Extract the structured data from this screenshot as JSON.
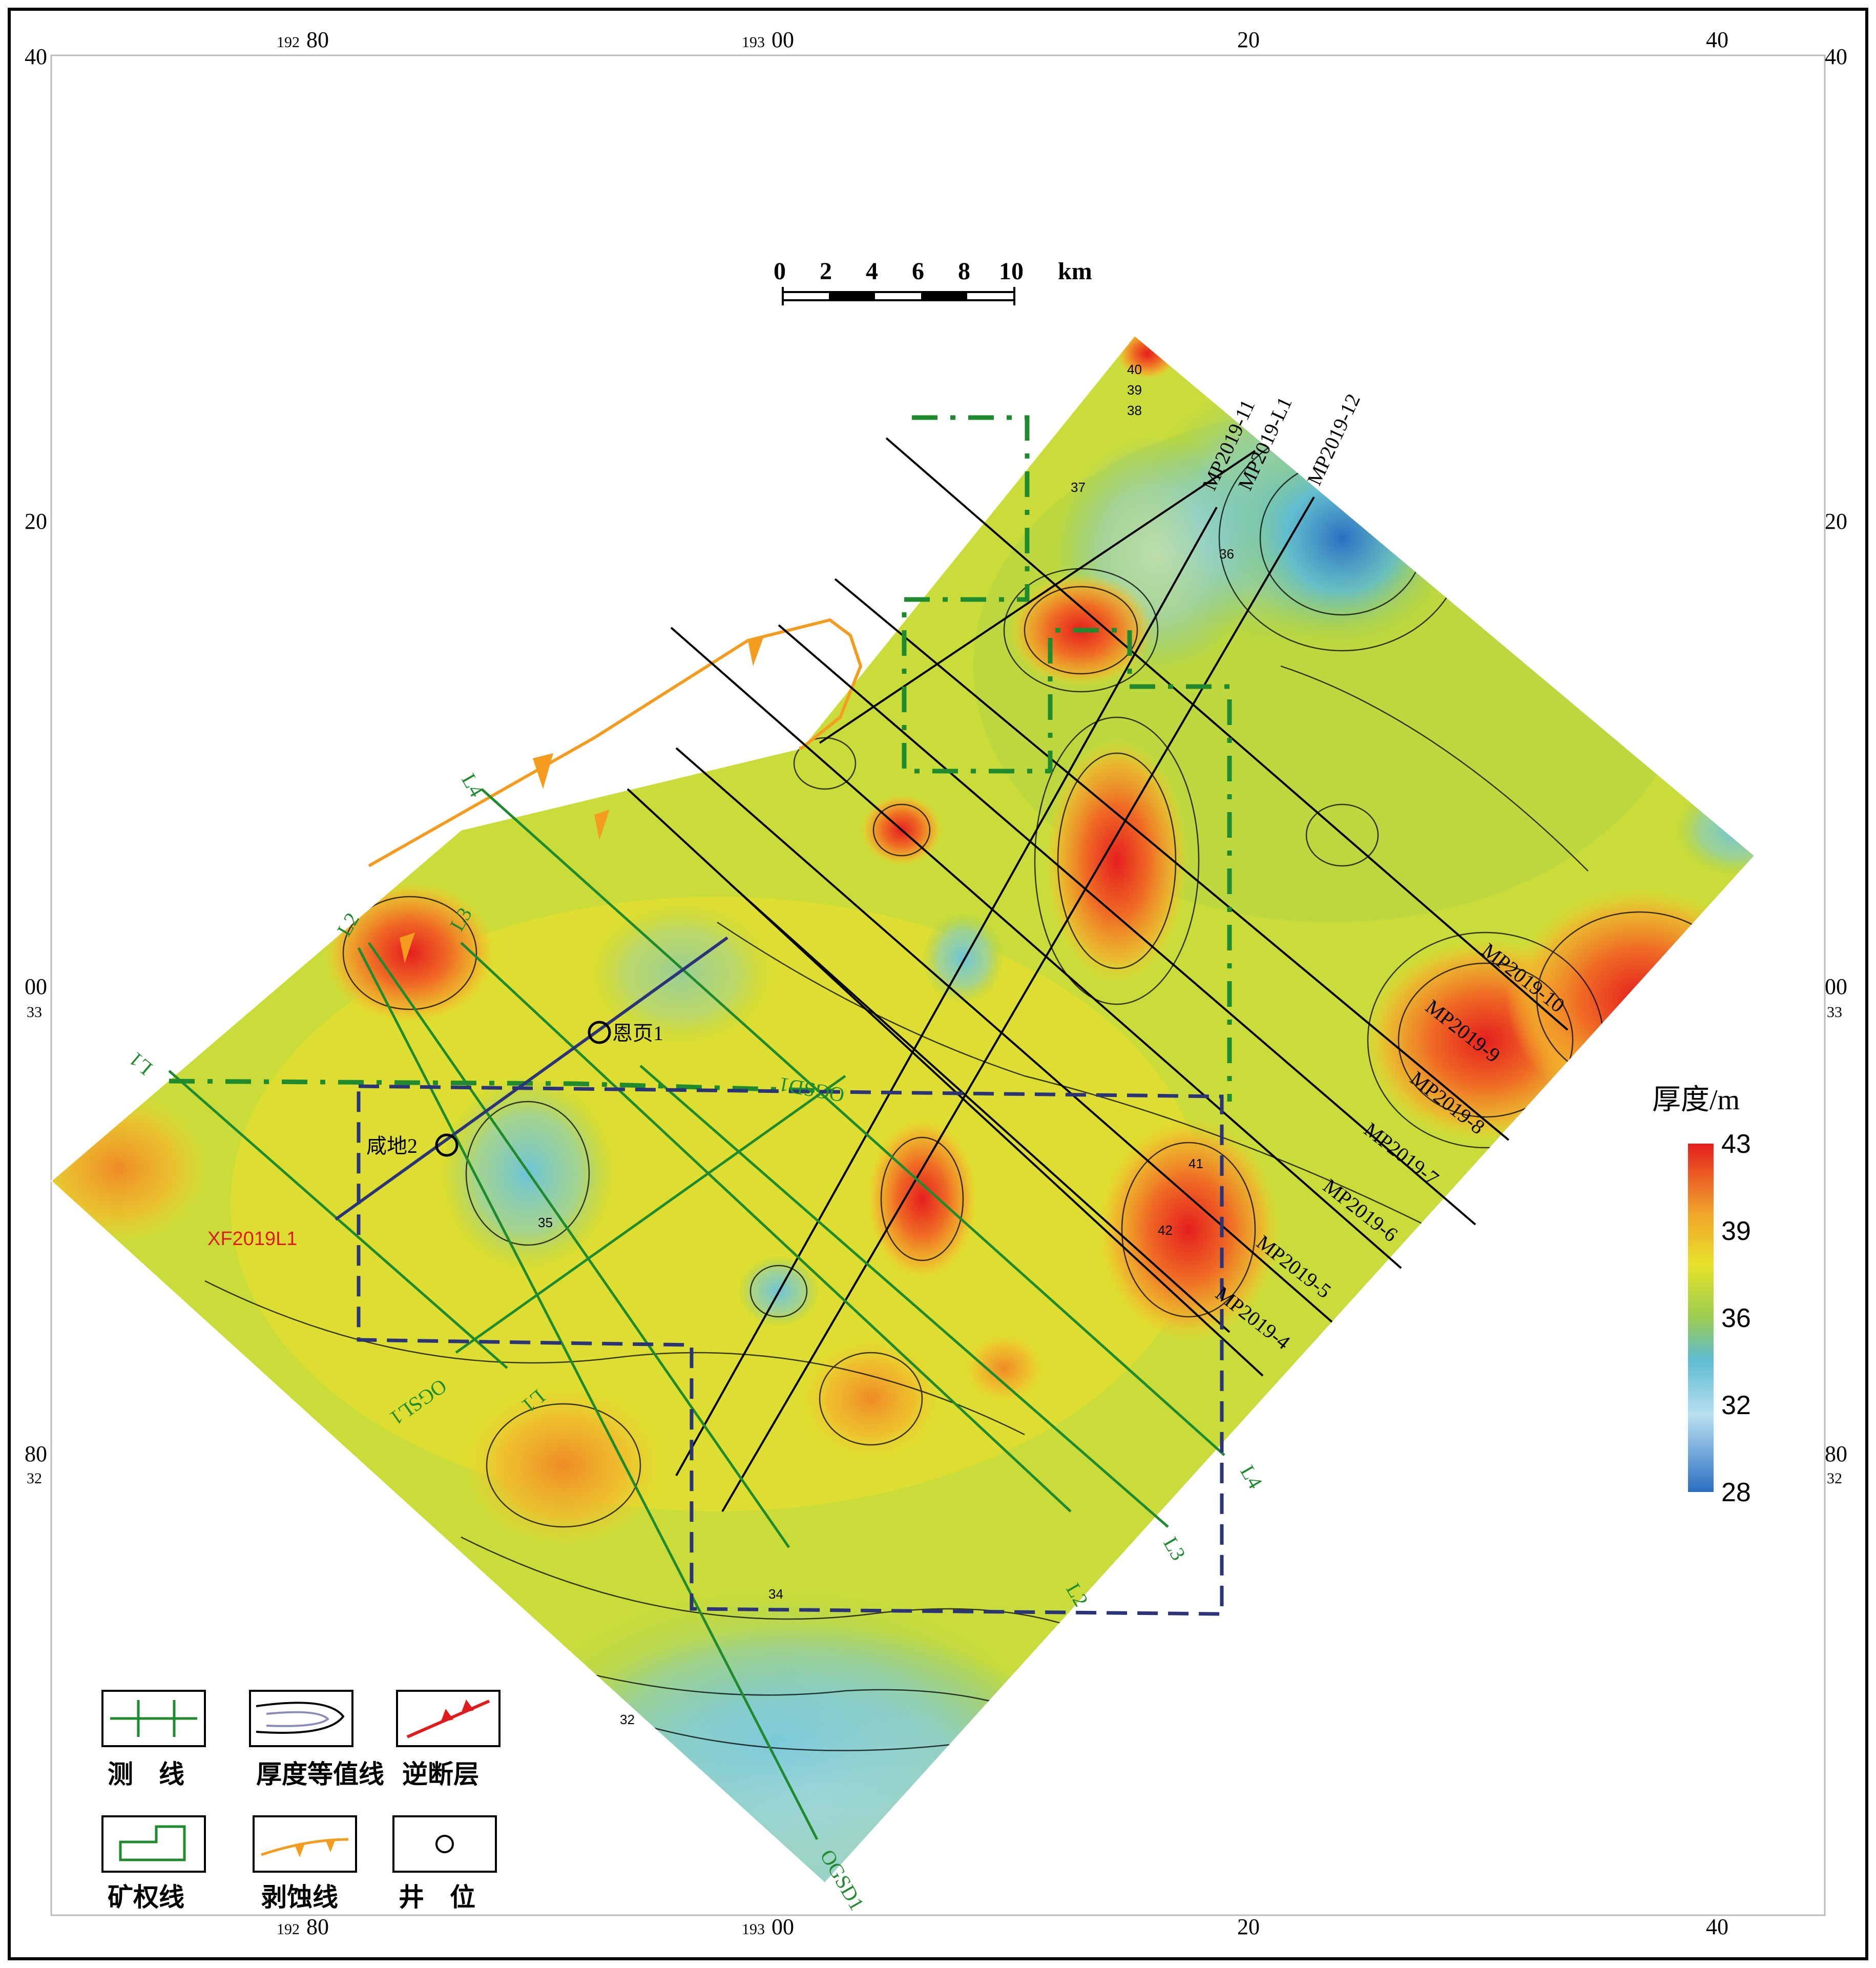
{
  "axes": {
    "top": [
      {
        "main": "80",
        "sub": "192"
      },
      {
        "main": "00",
        "sub": "193"
      },
      {
        "main": "20",
        "sub": ""
      },
      {
        "main": "40",
        "sub": ""
      }
    ],
    "left": [
      {
        "main": "40",
        "sub": ""
      },
      {
        "main": "20",
        "sub": ""
      },
      {
        "main": "00",
        "sub": "33"
      },
      {
        "main": "80",
        "sub": "32"
      }
    ]
  },
  "scale_bar": {
    "ticks": [
      "0",
      "2",
      "4",
      "6",
      "8",
      "10"
    ],
    "unit": "km"
  },
  "colorbar": {
    "title": "厚度/m",
    "ticks": [
      "43",
      "39",
      "36",
      "32",
      "28"
    ],
    "colors": [
      "#e51f1f",
      "#f0a52a",
      "#e8e22a",
      "#9ccc52",
      "#5dbcd0",
      "#b9dff0",
      "#2a6fc2"
    ]
  },
  "survey_lines": {
    "mp": [
      "MP2019-11",
      "MP2019-L1",
      "MP2019-12",
      "MP2019-10",
      "MP2019-9",
      "MP2019-8",
      "MP2019-7",
      "MP2019-6",
      "MP2019-5",
      "MP2019-4"
    ],
    "green": [
      "L1",
      "L2",
      "L3",
      "L4",
      "L4",
      "L3",
      "L2",
      "L1",
      "OGSL1",
      "OGSD1",
      "OGSD1"
    ],
    "red": "XF2019L1"
  },
  "wells": [
    "恩页1",
    "咸地2"
  ],
  "contour_values": [
    "40",
    "39",
    "38",
    "37",
    "36",
    "35",
    "34",
    "32",
    "41",
    "42"
  ],
  "legend": [
    {
      "label": "测　线",
      "icon": "survey-line-icon"
    },
    {
      "label": "厚度等值线",
      "icon": "contour-icon"
    },
    {
      "label": "逆断层",
      "icon": "reverse-fault-icon"
    },
    {
      "label": "矿权线",
      "icon": "mining-boundary-icon"
    },
    {
      "label": "剥蚀线",
      "icon": "erosion-line-icon"
    },
    {
      "label": "井　位",
      "icon": "well-icon"
    }
  ]
}
